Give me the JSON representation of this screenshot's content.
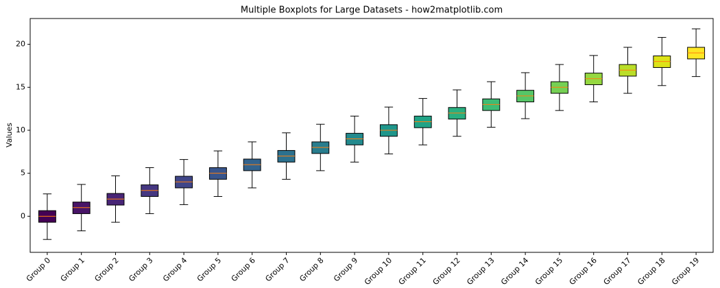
{
  "chart_data": {
    "type": "box",
    "title": "Multiple Boxplots for Large Datasets - how2matplotlib.com",
    "y_label": "Values",
    "categories": [
      "Group 0",
      "Group 1",
      "Group 2",
      "Group 3",
      "Group 4",
      "Group 5",
      "Group 6",
      "Group 7",
      "Group 8",
      "Group 9",
      "Group 10",
      "Group 11",
      "Group 12",
      "Group 13",
      "Group 14",
      "Group 15",
      "Group 16",
      "Group 17",
      "Group 18",
      "Group 19"
    ],
    "stats": [
      {
        "low": -2.7,
        "q1": -0.7,
        "median": 0,
        "q3": 0.65,
        "high": 2.6
      },
      {
        "low": -1.7,
        "q1": 0.3,
        "median": 1,
        "q3": 1.65,
        "high": 3.7
      },
      {
        "low": -0.7,
        "q1": 1.3,
        "median": 2,
        "q3": 2.65,
        "high": 4.7
      },
      {
        "low": 0.3,
        "q1": 2.3,
        "median": 3,
        "q3": 3.65,
        "high": 5.65
      },
      {
        "low": 1.35,
        "q1": 3.3,
        "median": 4,
        "q3": 4.65,
        "high": 6.6
      },
      {
        "low": 2.3,
        "q1": 4.3,
        "median": 5,
        "q3": 5.65,
        "high": 7.6
      },
      {
        "low": 3.3,
        "q1": 5.3,
        "median": 6,
        "q3": 6.65,
        "high": 8.65
      },
      {
        "low": 4.3,
        "q1": 6.3,
        "median": 7,
        "q3": 7.65,
        "high": 9.7
      },
      {
        "low": 5.3,
        "q1": 7.3,
        "median": 8,
        "q3": 8.65,
        "high": 10.7
      },
      {
        "low": 6.3,
        "q1": 8.3,
        "median": 9,
        "q3": 9.65,
        "high": 11.65
      },
      {
        "low": 7.25,
        "q1": 9.3,
        "median": 10,
        "q3": 10.65,
        "high": 12.7
      },
      {
        "low": 8.3,
        "q1": 10.3,
        "median": 11,
        "q3": 11.65,
        "high": 13.7
      },
      {
        "low": 9.3,
        "q1": 11.3,
        "median": 12,
        "q3": 12.65,
        "high": 14.7
      },
      {
        "low": 10.35,
        "q1": 12.3,
        "median": 13,
        "q3": 13.65,
        "high": 15.65
      },
      {
        "low": 11.35,
        "q1": 13.3,
        "median": 14,
        "q3": 14.65,
        "high": 16.7
      },
      {
        "low": 12.3,
        "q1": 14.3,
        "median": 15,
        "q3": 15.65,
        "high": 17.65
      },
      {
        "low": 13.3,
        "q1": 15.3,
        "median": 16,
        "q3": 16.65,
        "high": 18.7
      },
      {
        "low": 14.3,
        "q1": 16.3,
        "median": 17,
        "q3": 17.65,
        "high": 19.65
      },
      {
        "low": 15.2,
        "q1": 17.3,
        "median": 18,
        "q3": 18.65,
        "high": 20.8
      },
      {
        "low": 16.25,
        "q1": 18.3,
        "median": 19,
        "q3": 19.65,
        "high": 21.8
      }
    ],
    "colors": [
      "#440154",
      "#481467",
      "#482576",
      "#453781",
      "#404688",
      "#39558c",
      "#33638d",
      "#2d718e",
      "#287d8e",
      "#238a8d",
      "#1f968b",
      "#20a386",
      "#29af7f",
      "#3dbc74",
      "#56c667",
      "#75d054",
      "#95d840",
      "#bade28",
      "#dde318",
      "#fde725"
    ],
    "median_color": "#ff7f0e",
    "ylim": [
      -4.2,
      23
    ],
    "yticks": [
      0,
      5,
      10,
      15,
      20
    ],
    "grid": false
  }
}
